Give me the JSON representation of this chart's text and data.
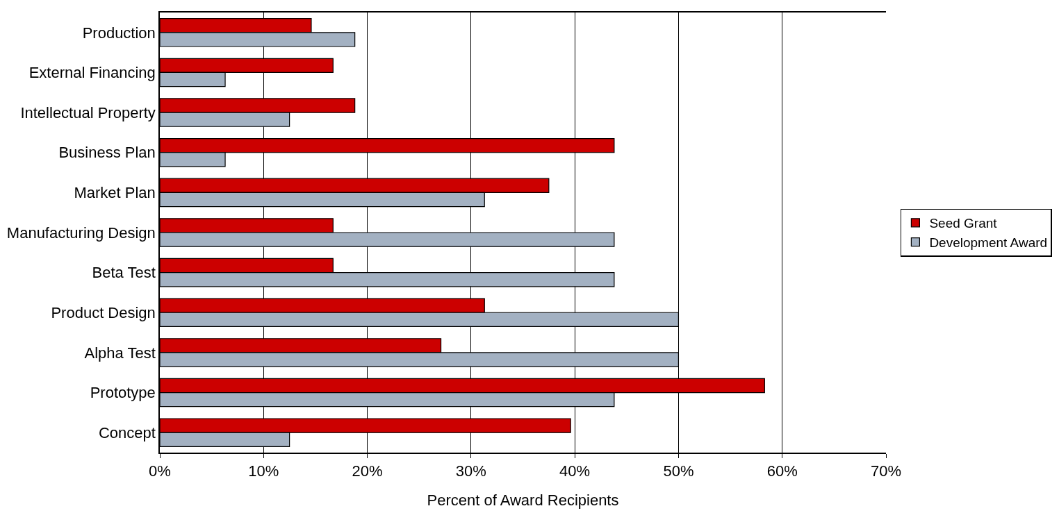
{
  "chart_data": {
    "type": "bar",
    "orientation": "horizontal",
    "xlabel": "Percent of Award Recipients",
    "categories": [
      "Production",
      "External Financing",
      "Intellectual Property",
      "Business Plan",
      "Market Plan",
      "Manufacturing Design",
      "Beta Test",
      "Product Design",
      "Alpha Test",
      "Prototype",
      "Concept"
    ],
    "series": [
      {
        "name": "Seed Grant",
        "color": "#cc0000",
        "values": [
          14.6,
          16.7,
          18.8,
          43.8,
          37.5,
          16.7,
          16.7,
          31.3,
          27.1,
          58.3,
          39.6
        ]
      },
      {
        "name": "Development Award",
        "color": "#a3b1c2",
        "values": [
          18.8,
          6.3,
          12.5,
          6.3,
          31.3,
          43.8,
          43.8,
          50,
          50,
          43.8,
          12.5
        ]
      }
    ],
    "xlim": [
      0,
      70
    ],
    "xticks": [
      {
        "value": 0,
        "label": "0%"
      },
      {
        "value": 10,
        "label": "10%"
      },
      {
        "value": 20,
        "label": "20%"
      },
      {
        "value": 30,
        "label": "30%"
      },
      {
        "value": 40,
        "label": "40%"
      },
      {
        "value": 50,
        "label": "50%"
      },
      {
        "value": 60,
        "label": "60%"
      },
      {
        "value": 70,
        "label": "70%"
      }
    ],
    "grid": "x",
    "legend": "right"
  }
}
